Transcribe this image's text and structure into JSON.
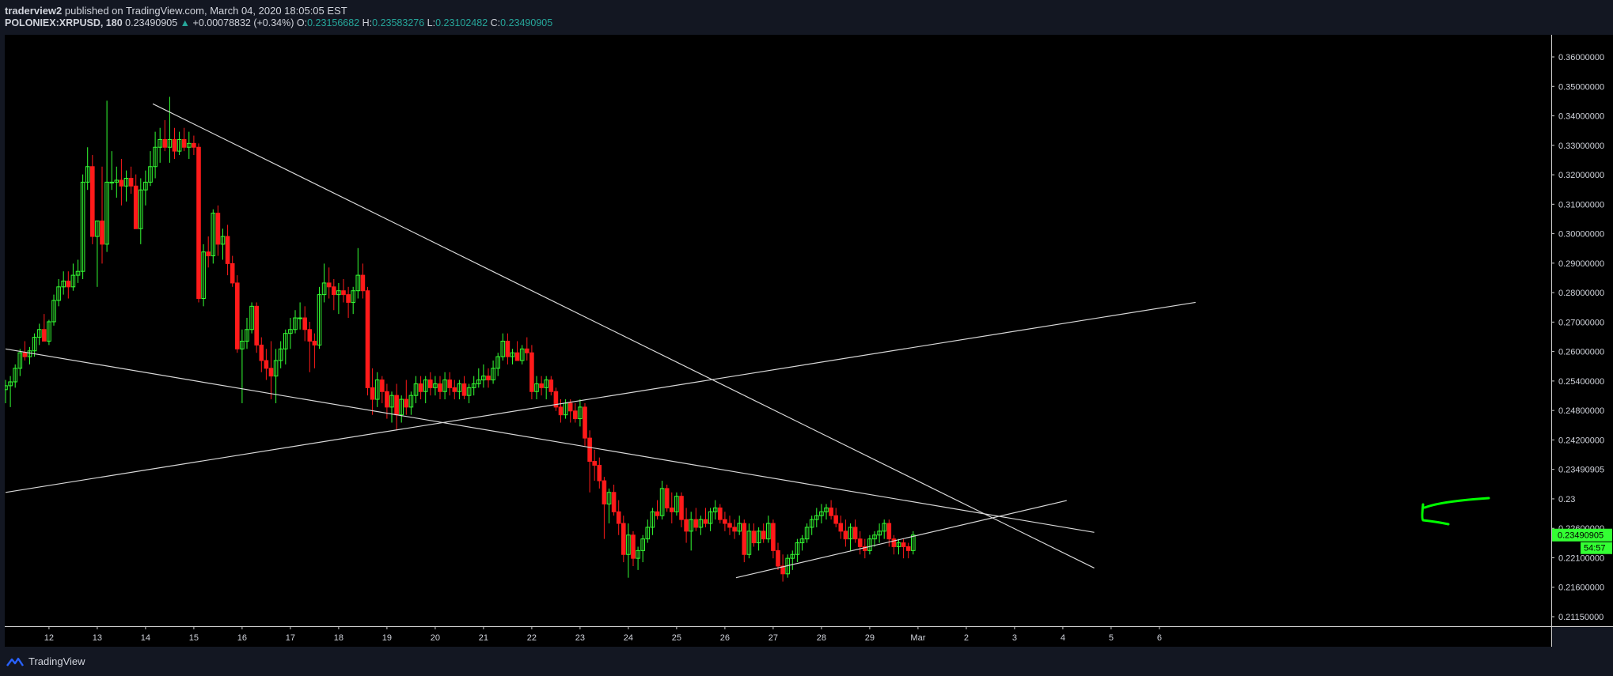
{
  "header": {
    "publisher": "traderview2",
    "published_text": "published on TradingView.com, March 04, 2020 18:05:05 EST",
    "symbol": "POLONIEX:XRPUSD, 180",
    "last": "0.23490905",
    "change": "+0.00078832 (+0.34%)",
    "o_label": "O:",
    "o": "0.23156682",
    "h_label": "H:",
    "h": "0.23583276",
    "l_label": "L:",
    "l": "0.23102482",
    "c_label": "C:",
    "c": "0.23490905"
  },
  "footer": {
    "brand": "TradingView"
  },
  "colors": {
    "background": "#000000",
    "up": "#33ff33",
    "down": "#ff1a1a",
    "trendline": "#d8d8d8",
    "annotation": "#00ff00"
  },
  "chart_data": {
    "type": "candlestick",
    "ylim": [
      0.2115,
      0.364
    ],
    "price_ticks": [
      "0.36000000",
      "0.35000000",
      "0.34000000",
      "0.33000000",
      "0.32000000",
      "0.31000000",
      "0.30000000",
      "0.29000000",
      "0.28000000",
      "0.27000000",
      "0.26000000",
      "0.25400000",
      "0.24800000",
      "0.24200000",
      "0.23490905",
      "0.23",
      "0.22600000",
      "0.22100000",
      "0.21600000",
      "0.21150000"
    ],
    "x_ticks": [
      "12",
      "13",
      "14",
      "15",
      "16",
      "17",
      "18",
      "19",
      "20",
      "21",
      "22",
      "23",
      "24",
      "25",
      "26",
      "27",
      "28",
      "29",
      "Mar",
      "2",
      "3",
      "4",
      "5",
      "6"
    ],
    "last_price_label": "0.23490905",
    "countdown": "54:57",
    "grid": false,
    "candles": [
      [
        0.2725,
        0.275,
        0.269,
        0.2735
      ],
      [
        0.2735,
        0.276,
        0.268,
        0.2745
      ],
      [
        0.2745,
        0.279,
        0.273,
        0.278
      ],
      [
        0.278,
        0.283,
        0.276,
        0.282
      ],
      [
        0.282,
        0.285,
        0.28,
        0.281
      ],
      [
        0.281,
        0.2835,
        0.279,
        0.2825
      ],
      [
        0.2825,
        0.287,
        0.281,
        0.286
      ],
      [
        0.286,
        0.2895,
        0.284,
        0.288
      ],
      [
        0.288,
        0.292,
        0.285,
        0.285
      ],
      [
        0.285,
        0.2905,
        0.284,
        0.29
      ],
      [
        0.29,
        0.297,
        0.289,
        0.2955
      ],
      [
        0.2955,
        0.301,
        0.294,
        0.299
      ],
      [
        0.299,
        0.303,
        0.297,
        0.3005
      ],
      [
        0.3005,
        0.303,
        0.296,
        0.299
      ],
      [
        0.299,
        0.305,
        0.298,
        0.302
      ],
      [
        0.302,
        0.306,
        0.3,
        0.303
      ],
      [
        0.303,
        0.328,
        0.301,
        0.326
      ],
      [
        0.326,
        0.335,
        0.324,
        0.33
      ],
      [
        0.33,
        0.333,
        0.31,
        0.312
      ],
      [
        0.312,
        0.316,
        0.299,
        0.316
      ],
      [
        0.316,
        0.33,
        0.305,
        0.31
      ],
      [
        0.31,
        0.347,
        0.308,
        0.326
      ],
      [
        0.326,
        0.334,
        0.324,
        0.326
      ],
      [
        0.326,
        0.33,
        0.322,
        0.3265
      ],
      [
        0.3265,
        0.332,
        0.32,
        0.325
      ],
      [
        0.325,
        0.329,
        0.321,
        0.327
      ],
      [
        0.327,
        0.33,
        0.323,
        0.325
      ],
      [
        0.325,
        0.328,
        0.314,
        0.314
      ],
      [
        0.314,
        0.327,
        0.31,
        0.324
      ],
      [
        0.324,
        0.329,
        0.32,
        0.326
      ],
      [
        0.326,
        0.334,
        0.325,
        0.33
      ],
      [
        0.33,
        0.339,
        0.327,
        0.335
      ],
      [
        0.335,
        0.34,
        0.331,
        0.337
      ],
      [
        0.337,
        0.342,
        0.334,
        0.335
      ],
      [
        0.335,
        0.348,
        0.331,
        0.337
      ],
      [
        0.337,
        0.34,
        0.332,
        0.334
      ],
      [
        0.334,
        0.339,
        0.333,
        0.337
      ],
      [
        0.337,
        0.34,
        0.334,
        0.335
      ],
      [
        0.335,
        0.339,
        0.332,
        0.336
      ],
      [
        0.336,
        0.338,
        0.333,
        0.335
      ],
      [
        0.335,
        0.336,
        0.295,
        0.296
      ],
      [
        0.296,
        0.31,
        0.294,
        0.308
      ],
      [
        0.308,
        0.312,
        0.304,
        0.307
      ],
      [
        0.307,
        0.319,
        0.305,
        0.318
      ],
      [
        0.318,
        0.32,
        0.307,
        0.31
      ],
      [
        0.31,
        0.314,
        0.306,
        0.312
      ],
      [
        0.312,
        0.315,
        0.302,
        0.305
      ],
      [
        0.305,
        0.307,
        0.299,
        0.3
      ],
      [
        0.3,
        0.302,
        0.282,
        0.283
      ],
      [
        0.283,
        0.288,
        0.269,
        0.285
      ],
      [
        0.285,
        0.291,
        0.283,
        0.288
      ],
      [
        0.288,
        0.295,
        0.287,
        0.294
      ],
      [
        0.294,
        0.295,
        0.282,
        0.284
      ],
      [
        0.284,
        0.286,
        0.277,
        0.28
      ],
      [
        0.28,
        0.283,
        0.275,
        0.278
      ],
      [
        0.278,
        0.285,
        0.27,
        0.276
      ],
      [
        0.276,
        0.283,
        0.269,
        0.28
      ],
      [
        0.28,
        0.285,
        0.278,
        0.283
      ],
      [
        0.283,
        0.288,
        0.279,
        0.287
      ],
      [
        0.287,
        0.291,
        0.283,
        0.288
      ],
      [
        0.288,
        0.293,
        0.287,
        0.291
      ],
      [
        0.291,
        0.295,
        0.288,
        0.291
      ],
      [
        0.291,
        0.294,
        0.285,
        0.288
      ],
      [
        0.288,
        0.29,
        0.277,
        0.285
      ],
      [
        0.285,
        0.287,
        0.278,
        0.284
      ],
      [
        0.284,
        0.299,
        0.283,
        0.297
      ],
      [
        0.297,
        0.305,
        0.295,
        0.3
      ],
      [
        0.3,
        0.304,
        0.296,
        0.299
      ],
      [
        0.299,
        0.301,
        0.293,
        0.297
      ],
      [
        0.297,
        0.3,
        0.292,
        0.298
      ],
      [
        0.298,
        0.301,
        0.295,
        0.297
      ],
      [
        0.297,
        0.299,
        0.291,
        0.295
      ],
      [
        0.295,
        0.299,
        0.292,
        0.298
      ],
      [
        0.298,
        0.309,
        0.296,
        0.302
      ],
      [
        0.302,
        0.305,
        0.296,
        0.298
      ],
      [
        0.298,
        0.299,
        0.271,
        0.273
      ],
      [
        0.273,
        0.278,
        0.266,
        0.27
      ],
      [
        0.27,
        0.277,
        0.268,
        0.275
      ],
      [
        0.275,
        0.276,
        0.269,
        0.272
      ],
      [
        0.272,
        0.274,
        0.265,
        0.268
      ],
      [
        0.268,
        0.272,
        0.264,
        0.271
      ],
      [
        0.271,
        0.274,
        0.262,
        0.266
      ],
      [
        0.266,
        0.271,
        0.264,
        0.27
      ],
      [
        0.27,
        0.275,
        0.266,
        0.268
      ],
      [
        0.268,
        0.272,
        0.266,
        0.271
      ],
      [
        0.271,
        0.276,
        0.269,
        0.274
      ],
      [
        0.274,
        0.276,
        0.27,
        0.272
      ],
      [
        0.272,
        0.276,
        0.269,
        0.275
      ],
      [
        0.275,
        0.277,
        0.271,
        0.273
      ],
      [
        0.273,
        0.276,
        0.271,
        0.274
      ],
      [
        0.274,
        0.276,
        0.27,
        0.272
      ],
      [
        0.272,
        0.277,
        0.27,
        0.275
      ],
      [
        0.275,
        0.277,
        0.271,
        0.273
      ],
      [
        0.273,
        0.275,
        0.27,
        0.272
      ],
      [
        0.272,
        0.275,
        0.27,
        0.274
      ],
      [
        0.274,
        0.276,
        0.27,
        0.271
      ],
      [
        0.271,
        0.274,
        0.269,
        0.273
      ],
      [
        0.273,
        0.276,
        0.271,
        0.274
      ],
      [
        0.274,
        0.278,
        0.273,
        0.275
      ],
      [
        0.275,
        0.279,
        0.273,
        0.276
      ],
      [
        0.276,
        0.278,
        0.273,
        0.275
      ],
      [
        0.275,
        0.28,
        0.274,
        0.278
      ],
      [
        0.278,
        0.282,
        0.276,
        0.281
      ],
      [
        0.281,
        0.287,
        0.28,
        0.285
      ],
      [
        0.285,
        0.287,
        0.279,
        0.281
      ],
      [
        0.281,
        0.283,
        0.279,
        0.282
      ],
      [
        0.282,
        0.285,
        0.28,
        0.28
      ],
      [
        0.28,
        0.284,
        0.279,
        0.283
      ],
      [
        0.283,
        0.286,
        0.28,
        0.282
      ],
      [
        0.282,
        0.284,
        0.27,
        0.272
      ],
      [
        0.272,
        0.276,
        0.27,
        0.274
      ],
      [
        0.274,
        0.276,
        0.271,
        0.273
      ],
      [
        0.273,
        0.276,
        0.27,
        0.275
      ],
      [
        0.275,
        0.276,
        0.271,
        0.272
      ],
      [
        0.272,
        0.273,
        0.267,
        0.268
      ],
      [
        0.268,
        0.27,
        0.264,
        0.266
      ],
      [
        0.266,
        0.27,
        0.265,
        0.269
      ],
      [
        0.269,
        0.27,
        0.264,
        0.267
      ],
      [
        0.267,
        0.269,
        0.264,
        0.265
      ],
      [
        0.265,
        0.27,
        0.263,
        0.268
      ],
      [
        0.268,
        0.269,
        0.258,
        0.26
      ],
      [
        0.26,
        0.262,
        0.246,
        0.254
      ],
      [
        0.254,
        0.257,
        0.249,
        0.253
      ],
      [
        0.253,
        0.255,
        0.247,
        0.249
      ],
      [
        0.249,
        0.25,
        0.234,
        0.243
      ],
      [
        0.243,
        0.247,
        0.238,
        0.246
      ],
      [
        0.246,
        0.248,
        0.24,
        0.241
      ],
      [
        0.241,
        0.244,
        0.235,
        0.238
      ],
      [
        0.238,
        0.24,
        0.228,
        0.23
      ],
      [
        0.23,
        0.238,
        0.224,
        0.235
      ],
      [
        0.235,
        0.236,
        0.227,
        0.229
      ],
      [
        0.229,
        0.232,
        0.226,
        0.231
      ],
      [
        0.231,
        0.235,
        0.228,
        0.234
      ],
      [
        0.234,
        0.239,
        0.233,
        0.237
      ],
      [
        0.237,
        0.242,
        0.235,
        0.241
      ],
      [
        0.241,
        0.244,
        0.239,
        0.24
      ],
      [
        0.24,
        0.249,
        0.239,
        0.247
      ],
      [
        0.247,
        0.248,
        0.241,
        0.242
      ],
      [
        0.242,
        0.246,
        0.238,
        0.241
      ],
      [
        0.241,
        0.246,
        0.24,
        0.245
      ],
      [
        0.245,
        0.246,
        0.237,
        0.239
      ],
      [
        0.239,
        0.242,
        0.233,
        0.236
      ],
      [
        0.236,
        0.241,
        0.231,
        0.239
      ],
      [
        0.239,
        0.242,
        0.236,
        0.237
      ],
      [
        0.237,
        0.24,
        0.235,
        0.239
      ],
      [
        0.239,
        0.242,
        0.237,
        0.238
      ],
      [
        0.238,
        0.242,
        0.236,
        0.241
      ],
      [
        0.241,
        0.244,
        0.239,
        0.242
      ],
      [
        0.242,
        0.243,
        0.238,
        0.239
      ],
      [
        0.239,
        0.241,
        0.236,
        0.238
      ],
      [
        0.238,
        0.24,
        0.235,
        0.237
      ],
      [
        0.237,
        0.239,
        0.234,
        0.236
      ],
      [
        0.236,
        0.24,
        0.235,
        0.238
      ],
      [
        0.238,
        0.239,
        0.228,
        0.23
      ],
      [
        0.23,
        0.238,
        0.229,
        0.236
      ],
      [
        0.236,
        0.238,
        0.232,
        0.233
      ],
      [
        0.233,
        0.237,
        0.231,
        0.236
      ],
      [
        0.236,
        0.238,
        0.233,
        0.234
      ],
      [
        0.234,
        0.24,
        0.233,
        0.238
      ],
      [
        0.238,
        0.239,
        0.229,
        0.231
      ],
      [
        0.231,
        0.233,
        0.226,
        0.227
      ],
      [
        0.227,
        0.23,
        0.223,
        0.225
      ],
      [
        0.225,
        0.23,
        0.224,
        0.229
      ],
      [
        0.229,
        0.231,
        0.226,
        0.23
      ],
      [
        0.23,
        0.234,
        0.228,
        0.233
      ],
      [
        0.233,
        0.235,
        0.231,
        0.234
      ],
      [
        0.234,
        0.238,
        0.233,
        0.237
      ],
      [
        0.237,
        0.24,
        0.235,
        0.239
      ],
      [
        0.239,
        0.242,
        0.237,
        0.24
      ],
      [
        0.24,
        0.243,
        0.238,
        0.241
      ],
      [
        0.241,
        0.243,
        0.239,
        0.242
      ],
      [
        0.242,
        0.244,
        0.239,
        0.24
      ],
      [
        0.24,
        0.242,
        0.237,
        0.238
      ],
      [
        0.238,
        0.24,
        0.234,
        0.236
      ],
      [
        0.236,
        0.239,
        0.232,
        0.234
      ],
      [
        0.234,
        0.238,
        0.231,
        0.237
      ],
      [
        0.237,
        0.239,
        0.233,
        0.234
      ],
      [
        0.234,
        0.236,
        0.23,
        0.232
      ],
      [
        0.232,
        0.234,
        0.229,
        0.231
      ],
      [
        0.231,
        0.235,
        0.23,
        0.234
      ],
      [
        0.234,
        0.236,
        0.232,
        0.235
      ],
      [
        0.235,
        0.238,
        0.233,
        0.236
      ],
      [
        0.236,
        0.239,
        0.234,
        0.238
      ],
      [
        0.238,
        0.239,
        0.232,
        0.234
      ],
      [
        0.234,
        0.235,
        0.23,
        0.232
      ],
      [
        0.232,
        0.234,
        0.23,
        0.233
      ],
      [
        0.233,
        0.234,
        0.229,
        0.232
      ],
      [
        0.232,
        0.233,
        0.229,
        0.231
      ],
      [
        0.231,
        0.236,
        0.23,
        0.235
      ]
    ],
    "trendlines": [
      {
        "name": "descending resistance",
        "x1": 30.5,
        "y1": 0.3462,
        "x2": 225.5,
        "y2": 0.2265
      },
      {
        "name": "lower descending line",
        "x1": 0,
        "y1": 0.283,
        "x2": 225.5,
        "y2": 0.2357
      },
      {
        "name": "rising line",
        "x1": 0,
        "y1": 0.246,
        "x2": 246.5,
        "y2": 0.295
      },
      {
        "name": "rising support",
        "x1": 151.3,
        "y1": 0.224,
        "x2": 219.8,
        "y2": 0.2439
      }
    ],
    "x_tick_positions": [
      9,
      19,
      29,
      39,
      49,
      59,
      69,
      79,
      89,
      99,
      109,
      119,
      129,
      139,
      149,
      159,
      169,
      179,
      189,
      199,
      209,
      219,
      229,
      239
    ]
  }
}
